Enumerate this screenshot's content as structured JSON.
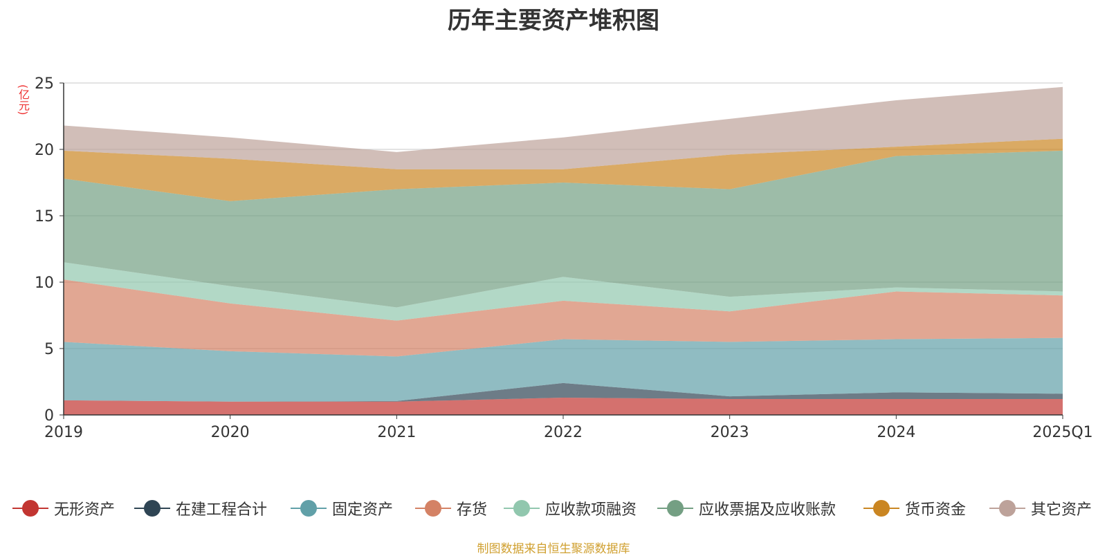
{
  "chart_data": {
    "type": "area",
    "title": "历年主要资产堆积图",
    "ylabel": "(亿元)",
    "xlabel": "",
    "categories": [
      "2019",
      "2020",
      "2021",
      "2022",
      "2023",
      "2024",
      "2025Q1"
    ],
    "ylim": [
      0,
      25
    ],
    "yticks": [
      0,
      5,
      10,
      15,
      20,
      25
    ],
    "stacked": true,
    "grid": true,
    "legend_position": "bottom",
    "series": [
      {
        "name": "无形资产",
        "color": "#c23531",
        "values": [
          1.1,
          1.0,
          1.0,
          1.3,
          1.2,
          1.2,
          1.2
        ]
      },
      {
        "name": "在建工程合计",
        "color": "#2f4554",
        "values": [
          0.0,
          0.0,
          0.05,
          1.1,
          0.2,
          0.5,
          0.4
        ]
      },
      {
        "name": "固定资产",
        "color": "#61a0a8",
        "values": [
          4.4,
          3.8,
          3.35,
          3.3,
          4.1,
          4.0,
          4.2
        ]
      },
      {
        "name": "存货",
        "color": "#d48265",
        "values": [
          4.7,
          3.6,
          2.7,
          2.9,
          2.3,
          3.6,
          3.2
        ]
      },
      {
        "name": "应收款项融资",
        "color": "#91c7ae",
        "values": [
          1.3,
          1.3,
          1.0,
          1.8,
          1.1,
          0.3,
          0.3
        ]
      },
      {
        "name": "应收票据及应收账款",
        "color": "#749f83",
        "values": [
          6.3,
          6.4,
          8.9,
          7.1,
          8.1,
          9.9,
          10.6
        ]
      },
      {
        "name": "货币资金",
        "color": "#ca8622",
        "values": [
          2.1,
          3.2,
          1.5,
          1.0,
          2.6,
          0.7,
          0.9
        ]
      },
      {
        "name": "其它资产",
        "color": "#bda29a",
        "values": [
          1.9,
          1.6,
          1.3,
          2.4,
          2.7,
          3.5,
          3.9
        ]
      }
    ]
  },
  "source_note": "制图数据来自恒生聚源数据库"
}
